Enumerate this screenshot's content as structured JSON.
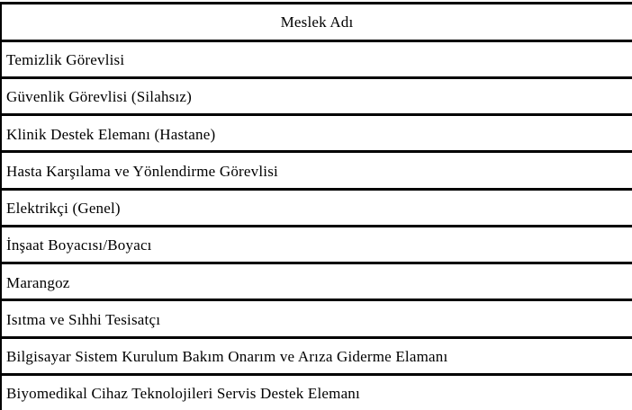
{
  "colors": {
    "background": "#ffffff",
    "border": "#000000",
    "text": "#000000"
  },
  "table": {
    "header": "Meslek Adı",
    "rows": [
      "Temizlik Görevlisi",
      "Güvenlik Görevlisi (Silahsız)",
      "Klinik Destek Elemanı (Hastane)",
      "Hasta Karşılama ve Yönlendirme Görevlisi",
      "Elektrikçi (Genel)",
      "İnşaat Boyacısı/Boyacı",
      "Marangoz",
      "Isıtma ve Sıhhi Tesisatçı",
      "Bilgisayar Sistem Kurulum Bakım Onarım ve Arıza Giderme Elamanı",
      "Biyomedikal Cihaz Teknolojileri Servis Destek Elemanı"
    ]
  }
}
